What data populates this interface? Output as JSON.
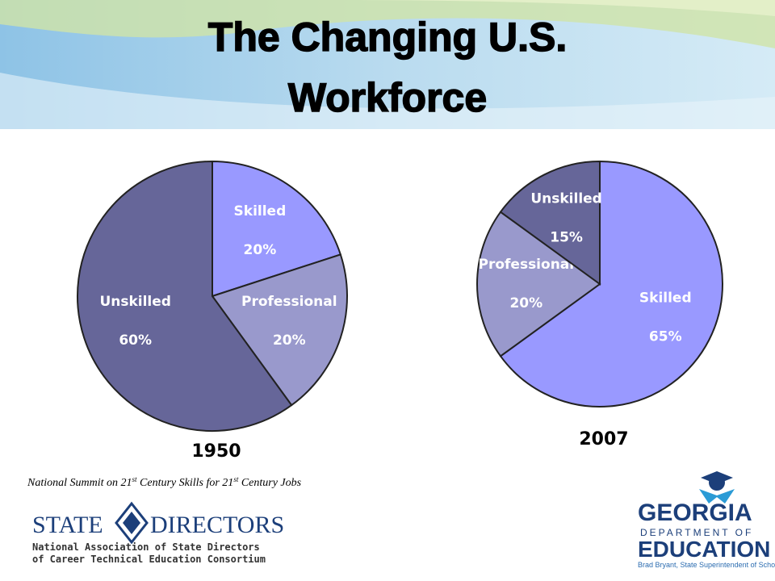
{
  "title": "The Changing U.S. Workforce",
  "source": [
    "National Summit on 21",
    "st",
    " Century Skills for 21",
    "st",
    " Century Jobs"
  ],
  "logos": {
    "left": [
      "STATE",
      "DIRECTORS",
      "National Association of State Directors",
      "of Career Technical Education Consortium"
    ],
    "right": [
      "GEORGIA",
      "DEPARTMENT OF",
      "EDUCATION",
      "Brad Bryant, State Superintendent of Schools"
    ]
  },
  "chart_data": [
    {
      "type": "pie",
      "title": "1950",
      "categories": [
        "Skilled",
        "Professional",
        "Unskilled"
      ],
      "values": [
        20,
        20,
        60
      ],
      "value_labels": [
        "20%",
        "20%",
        "60%"
      ],
      "colors": [
        "#9999ff",
        "#9999cc",
        "#666699"
      ]
    },
    {
      "type": "pie",
      "title": "2007",
      "categories": [
        "Skilled",
        "Professional",
        "Unskilled"
      ],
      "values": [
        65,
        20,
        15
      ],
      "value_labels": [
        "65%",
        "20%",
        "15%"
      ],
      "colors": [
        "#9999ff",
        "#9999cc",
        "#666699"
      ]
    }
  ]
}
